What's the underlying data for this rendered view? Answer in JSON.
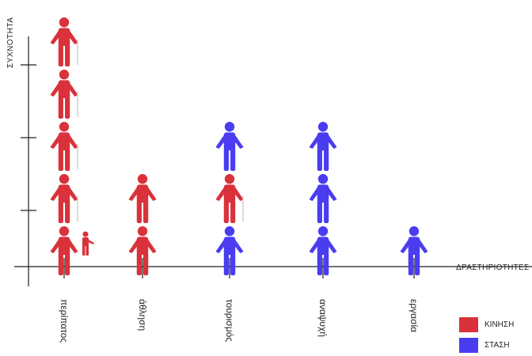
{
  "chart_data": {
    "type": "pictogram",
    "ylabel": "ΣΥΧΝΟΤΗΤΑ",
    "xlabel": "ΔΡΑΣΤΗΡΙΟΤΗΤΕΣ",
    "categories": [
      "περίπατος",
      "άθληση",
      "τουρισμός",
      "αναψυχή",
      "εργασία"
    ],
    "series": [
      {
        "name": "ΚΙΝΗΣΗ",
        "color": "#d9323b"
      },
      {
        "name": "ΣΤΑΣΗ",
        "color": "#4a3df0"
      }
    ],
    "stacks": [
      [
        "ΚΙΝΗΣΗ",
        "ΚΙΝΗΣΗ",
        "ΚΙΝΗΣΗ",
        "ΚΙΝΗΣΗ",
        "ΚΙΝΗΣΗ"
      ],
      [
        "ΚΙΝΗΣΗ",
        "ΚΙΝΗΣΗ"
      ],
      [
        "ΣΤΑΣΗ",
        "ΚΙΝΗΣΗ",
        "ΣΤΑΣΗ"
      ],
      [
        "ΣΤΑΣΗ",
        "ΣΤΑΣΗ",
        "ΣΤΑΣΗ"
      ],
      [
        "ΣΤΑΣΗ"
      ]
    ],
    "grid": false,
    "legend_position": "bottom-right"
  }
}
